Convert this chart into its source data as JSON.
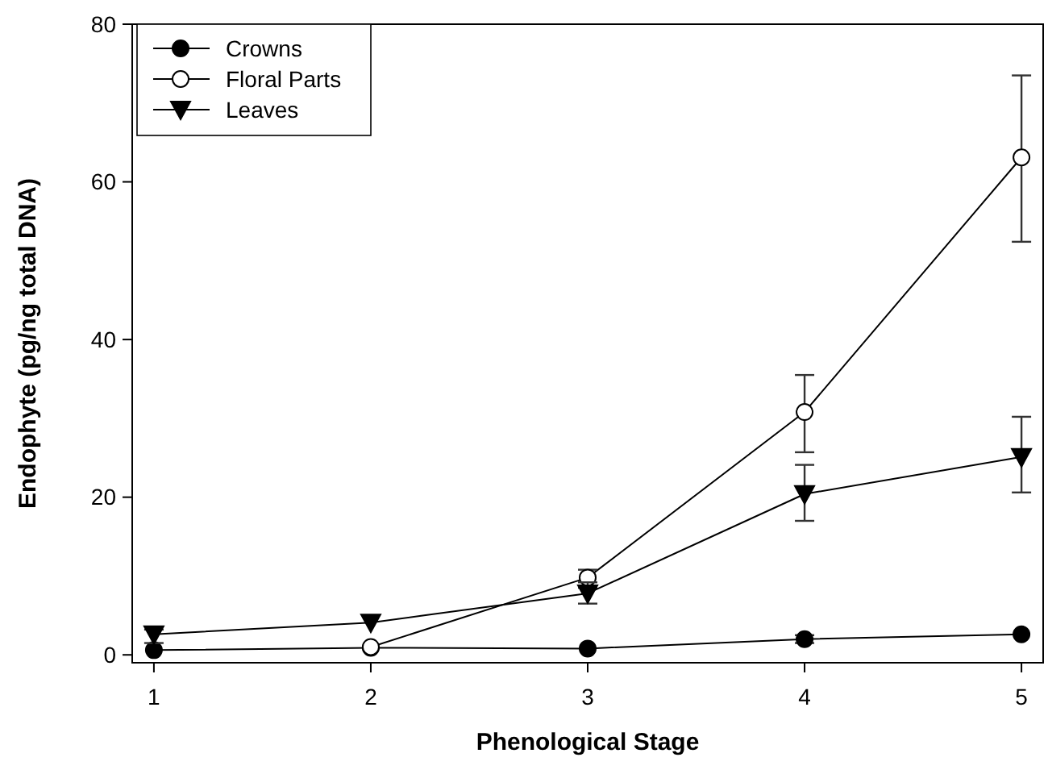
{
  "chart_data": {
    "type": "line",
    "xlabel": "Phenological Stage",
    "ylabel": "Endophyte (pg/ng total DNA)",
    "x": [
      1,
      2,
      3,
      4,
      5
    ],
    "xlim": [
      0.9,
      5.1
    ],
    "xticks": [
      1,
      2,
      3,
      4,
      5
    ],
    "ylim": [
      -1,
      80
    ],
    "yticks": [
      0,
      20,
      40,
      60,
      80
    ],
    "legend": "top left",
    "grid": false,
    "series": [
      {
        "name": "Crowns",
        "color": "#000000",
        "marker": "circle",
        "values": [
          0.6,
          0.9,
          0.8,
          2.0,
          2.6
        ],
        "errors": [
          null,
          null,
          null,
          0.5,
          null
        ]
      },
      {
        "name": "Floral Parts",
        "color": "#000000",
        "marker": "circle-open",
        "values": [
          null,
          1.0,
          9.8,
          30.8,
          63.1
        ],
        "errors": [
          null,
          null,
          [
            8.5,
            10.8
          ],
          [
            25.7,
            35.5
          ],
          [
            52.4,
            73.5
          ]
        ]
      },
      {
        "name": "Leaves",
        "color": "#000000",
        "marker": "triangle",
        "values": [
          2.6,
          4.1,
          7.8,
          20.4,
          25.1
        ],
        "errors": [
          [
            1.5,
            3.2
          ],
          null,
          [
            6.5,
            9.2
          ],
          [
            17.0,
            24.1
          ],
          [
            20.6,
            30.2
          ]
        ]
      }
    ]
  }
}
